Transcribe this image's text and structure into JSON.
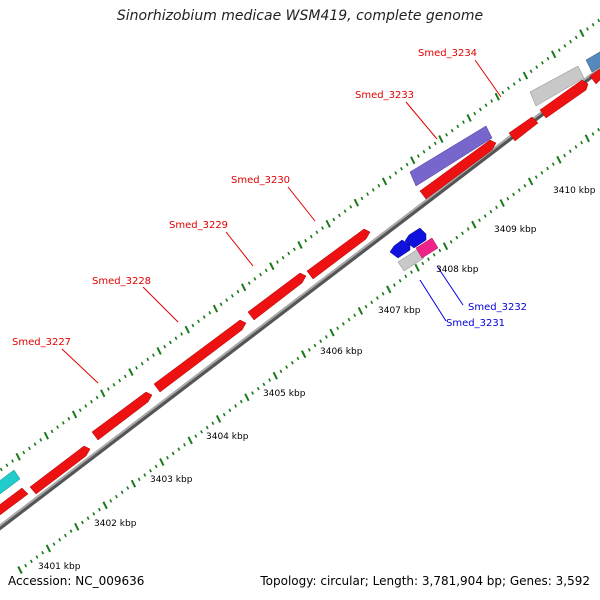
{
  "title": "Sinorhizobium medicae WSM419, complete genome",
  "accession": "Accession: NC_009636",
  "summary": "Topology: circular; Length: 3,781,904 bp; Genes: 3,592",
  "colors": {
    "forward_gene": "#ee1111",
    "reverse_gene": "#1111dd",
    "backbone": "#888888",
    "tick": "#1a7a1a",
    "purple_feature": "#7766cc",
    "grey_feature": "#c8c8c8",
    "pink_feature": "#ee2288",
    "cyan_feature": "#22cccc",
    "steel_feature": "#5588bb"
  },
  "kbp_ticks": [
    "3401 kbp",
    "3402 kbp",
    "3403 kbp",
    "3404 kbp",
    "3405 kbp",
    "3406 kbp",
    "3407 kbp",
    "3408 kbp",
    "3409 kbp",
    "3410 kbp"
  ],
  "forward_labels": [
    "Smed_3227",
    "Smed_3228",
    "Smed_3229",
    "Smed_3230",
    "Smed_3233",
    "Smed_3234"
  ],
  "reverse_labels": [
    "Smed_3231",
    "Smed_3232"
  ]
}
